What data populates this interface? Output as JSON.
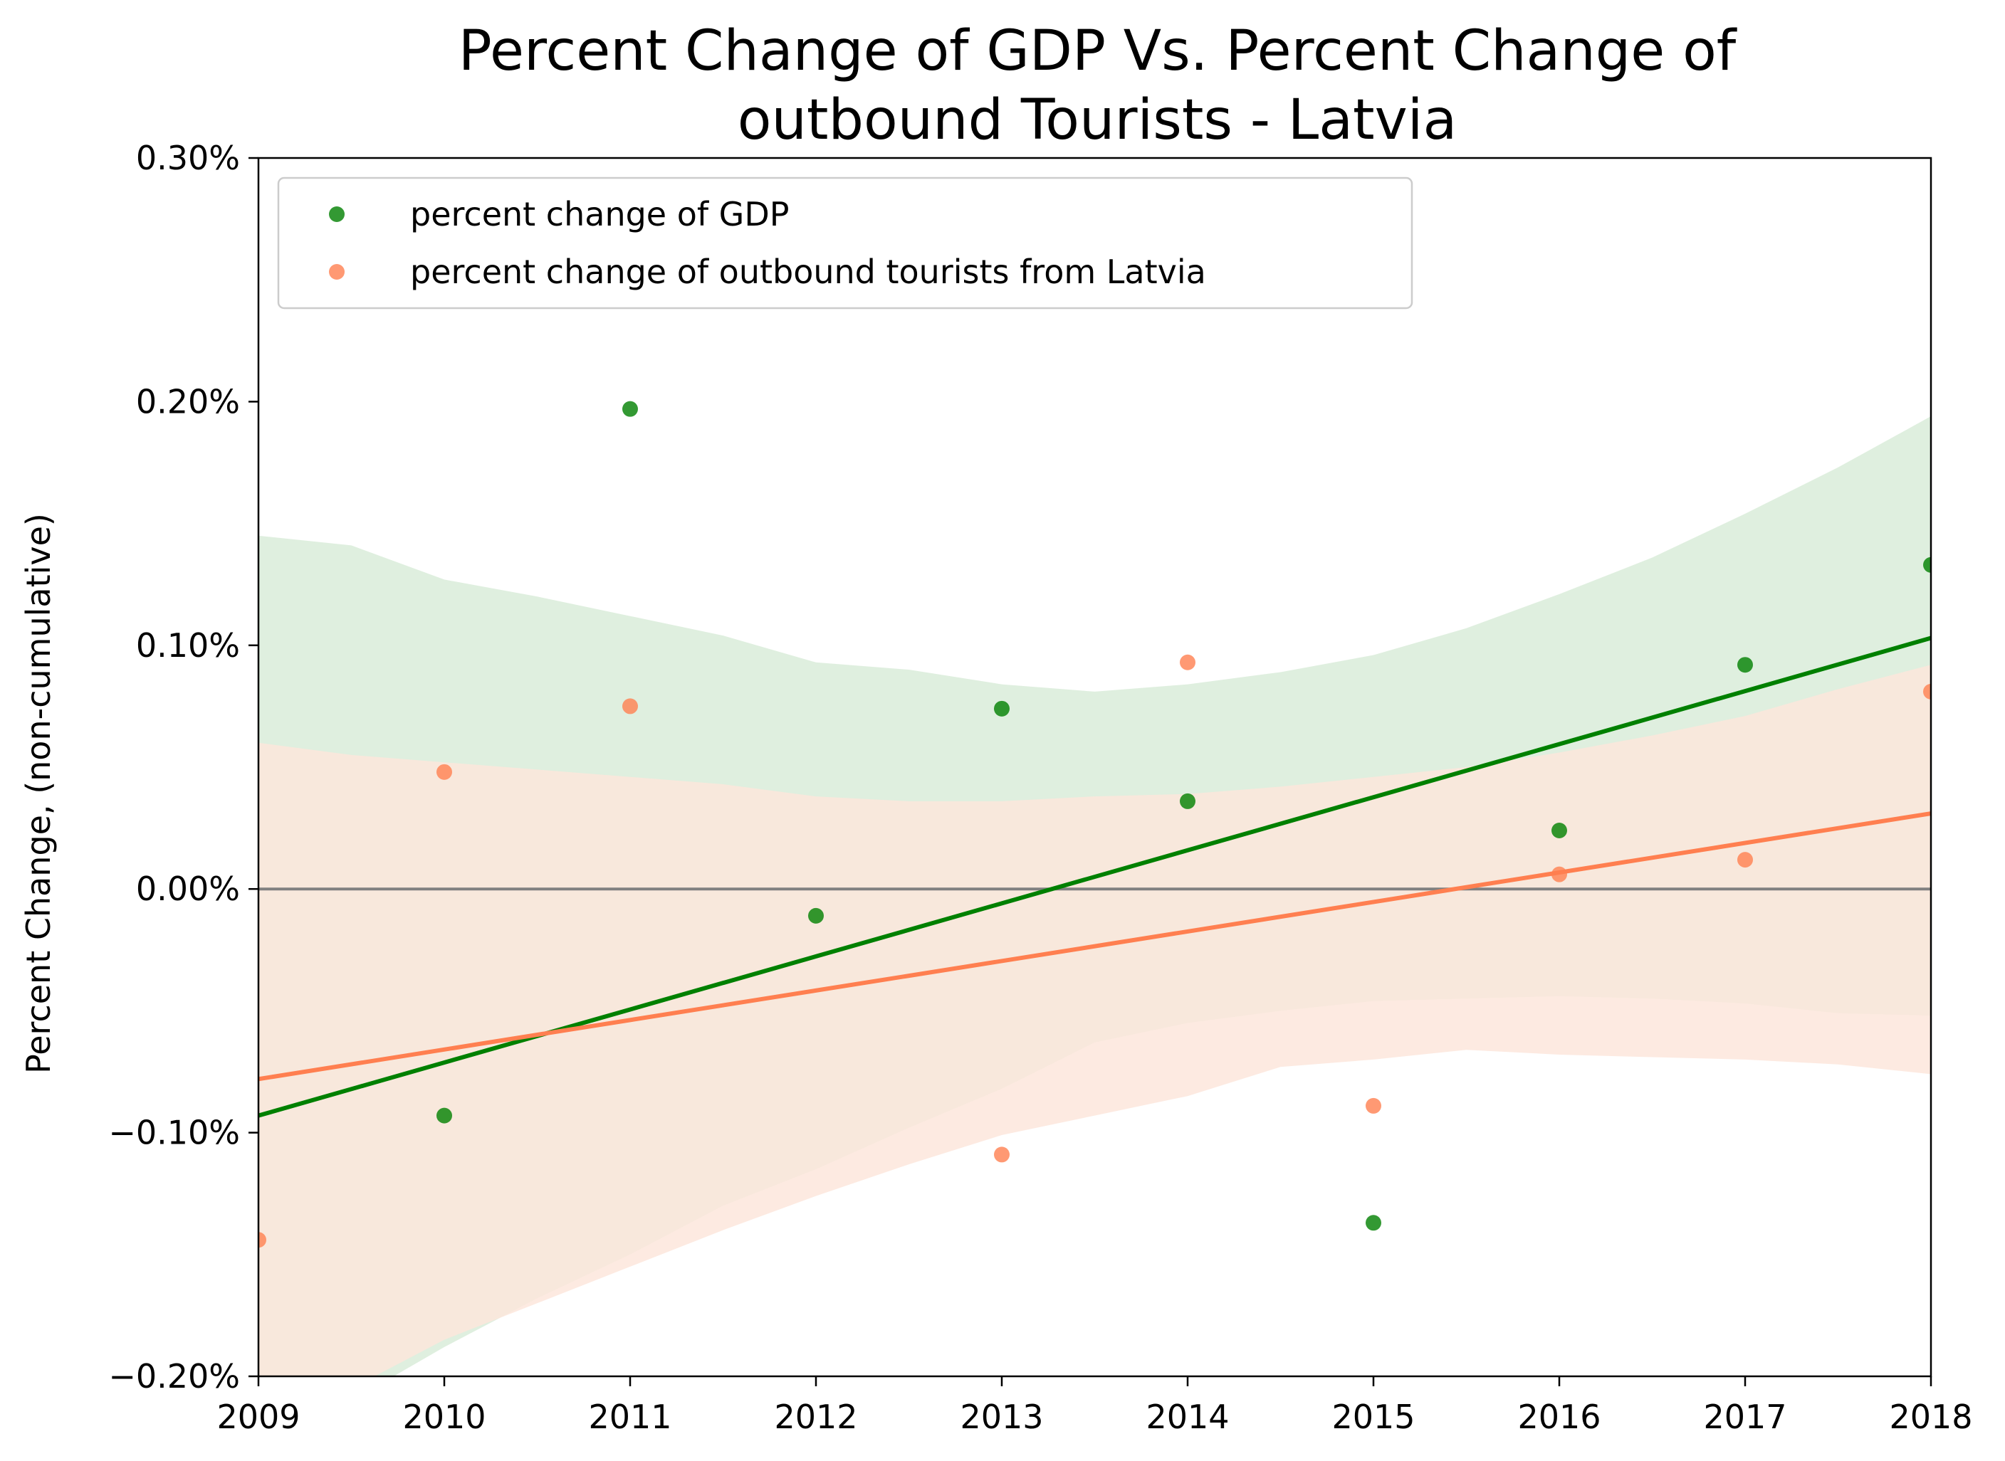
{
  "chart_data": {
    "type": "scatter",
    "title_lines": [
      "Percent Change of GDP Vs. Percent Change of",
      "outbound Tourists - Latvia"
    ],
    "xlabel": "",
    "ylabel": "Percent Change, (non-cumulative)",
    "xlim": [
      2009,
      2018
    ],
    "ylim": [
      -0.002,
      0.003
    ],
    "x_ticks": [
      2009,
      2010,
      2011,
      2012,
      2013,
      2014,
      2015,
      2016,
      2017,
      2018
    ],
    "y_ticks": [
      -0.002,
      -0.001,
      0.0,
      0.001,
      0.002,
      0.003
    ],
    "y_tick_labels": [
      "−0.20%",
      "−0.10%",
      "0.00%",
      "0.10%",
      "0.20%",
      "0.30%"
    ],
    "grid": false,
    "legend_position": "upper-left",
    "zero_line": {
      "y": 0.0,
      "color": "#808080"
    },
    "series": [
      {
        "name": "percent change of GDP",
        "color": "#008000",
        "x": [
          2010,
          2011,
          2012,
          2013,
          2014,
          2015,
          2016,
          2017,
          2018
        ],
        "y": [
          -0.00093,
          0.00197,
          -0.00011,
          0.00074,
          0.00036,
          -0.00137,
          0.00024,
          0.00092,
          0.00133
        ],
        "regression": {
          "x": [
            2009,
            2018
          ],
          "y": [
            -0.00093,
            0.00103
          ]
        },
        "band_color": "#d9ecd9",
        "band": {
          "x": [
            2009,
            2009.5,
            2010,
            2010.5,
            2011,
            2011.5,
            2012,
            2012.5,
            2013,
            2013.5,
            2014,
            2014.5,
            2015,
            2015.5,
            2016,
            2016.5,
            2017,
            2017.5,
            2018
          ],
          "upper": [
            0.00145,
            0.00141,
            0.00127,
            0.0012,
            0.00112,
            0.00104,
            0.00093,
            0.0009,
            0.00084,
            0.00081,
            0.00084,
            0.00089,
            0.00096,
            0.00107,
            0.00121,
            0.00136,
            0.00154,
            0.00173,
            0.00194
          ],
          "lower": [
            -0.00225,
            -0.0021,
            -0.00188,
            -0.00168,
            -0.0015,
            -0.0013,
            -0.00115,
            -0.00098,
            -0.00082,
            -0.00063,
            -0.00055,
            -0.0005,
            -0.00046,
            -0.00045,
            -0.00044,
            -0.00045,
            -0.00047,
            -0.00051,
            -0.00052
          ]
        }
      },
      {
        "name": "percent change of outbound tourists from Latvia",
        "color": "#ff7f50",
        "x": [
          2009,
          2010,
          2011,
          2013,
          2014,
          2015,
          2016,
          2017,
          2018
        ],
        "y": [
          -0.00144,
          0.00048,
          0.00075,
          -0.00109,
          0.00093,
          -0.00089,
          6e-05,
          0.00012,
          0.00081
        ],
        "regression": {
          "x": [
            2009,
            2018
          ],
          "y": [
            -0.00078,
            0.00031
          ]
        },
        "band_color": "#fde6dc",
        "band": {
          "x": [
            2009,
            2009.5,
            2010,
            2010.5,
            2011,
            2011.5,
            2012,
            2012.5,
            2013,
            2013.5,
            2014,
            2014.5,
            2015,
            2015.5,
            2016,
            2016.5,
            2017,
            2017.5,
            2018
          ],
          "upper": [
            0.0006,
            0.00055,
            0.00052,
            0.00049,
            0.00046,
            0.00043,
            0.00038,
            0.00036,
            0.00036,
            0.00038,
            0.00039,
            0.00042,
            0.00046,
            0.0005,
            0.00056,
            0.00063,
            0.00071,
            0.00082,
            0.00092
          ],
          "lower": [
            -0.0021,
            -0.00205,
            -0.00185,
            -0.0017,
            -0.00155,
            -0.0014,
            -0.00126,
            -0.00113,
            -0.00101,
            -0.00093,
            -0.00085,
            -0.00073,
            -0.0007,
            -0.00066,
            -0.00068,
            -0.00069,
            -0.0007,
            -0.00072,
            -0.00076
          ]
        }
      }
    ]
  }
}
